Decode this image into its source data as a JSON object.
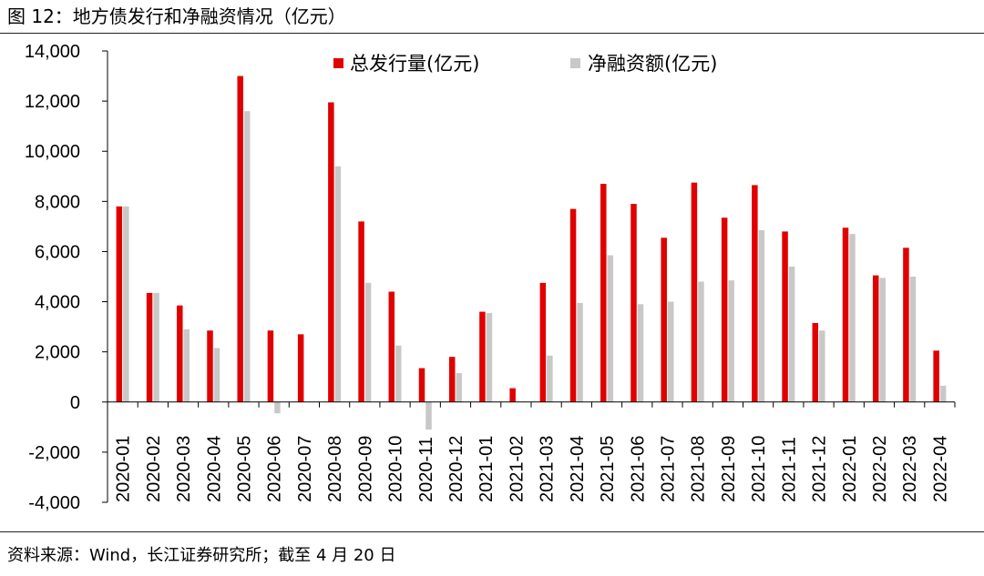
{
  "figure_title": "图 12：地方债发行和净融资情况（亿元）",
  "source_note": "资料来源：Wind，长江证券研究所；截至 4 月 20 日",
  "colors": {
    "issuance": "#e00000",
    "net_financing": "#c8c8c8",
    "axis": "#000000"
  },
  "chart_data": {
    "type": "bar",
    "title": "",
    "xlabel": "",
    "ylabel": "",
    "ylim": [
      -4000,
      14000
    ],
    "yticks": [
      -4000,
      -2000,
      0,
      2000,
      4000,
      6000,
      8000,
      10000,
      12000,
      14000
    ],
    "ytick_labels": [
      "-4,000",
      "-2,000",
      "0",
      "2,000",
      "4,000",
      "6,000",
      "8,000",
      "10,000",
      "12,000",
      "14,000"
    ],
    "grid": false,
    "legend_position": "top-center",
    "categories": [
      "2020-01",
      "2020-02",
      "2020-03",
      "2020-04",
      "2020-05",
      "2020-06",
      "2020-07",
      "2020-08",
      "2020-09",
      "2020-10",
      "2020-11",
      "2020-12",
      "2021-01",
      "2021-02",
      "2021-03",
      "2021-04",
      "2021-05",
      "2021-06",
      "2021-07",
      "2021-08",
      "2021-09",
      "2021-10",
      "2021-11",
      "2021-12",
      "2022-01",
      "2022-02",
      "2022-03",
      "2022-04"
    ],
    "series": [
      {
        "name": "总发行量(亿元)",
        "values": [
          7800,
          4350,
          3850,
          2850,
          13000,
          2850,
          2700,
          11950,
          7200,
          4400,
          1350,
          1800,
          3600,
          550,
          4750,
          7700,
          8700,
          7900,
          6550,
          8750,
          7350,
          8650,
          6800,
          3150,
          6950,
          5050,
          6150,
          2050
        ]
      },
      {
        "name": "净融资额(亿元)",
        "values": [
          7800,
          4350,
          2900,
          2150,
          11600,
          -450,
          0,
          9400,
          4750,
          2250,
          -1100,
          1150,
          3550,
          0,
          1850,
          3950,
          5850,
          3900,
          4000,
          4800,
          4850,
          6850,
          5400,
          2850,
          6700,
          4950,
          5000,
          650
        ]
      }
    ]
  }
}
